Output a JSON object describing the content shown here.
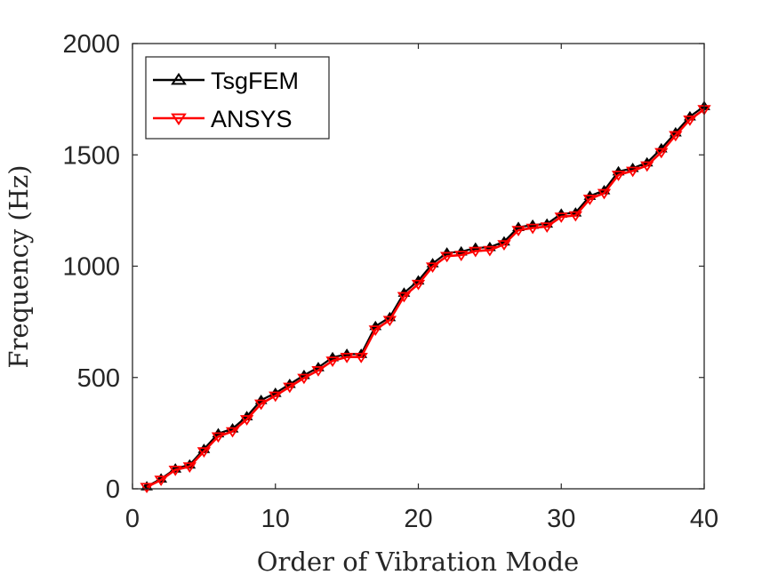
{
  "chart_data": {
    "type": "line",
    "title": "",
    "xlabel": "Order of Vibration Mode",
    "ylabel": "Frequency (Hz)",
    "xlim": [
      0,
      40
    ],
    "ylim": [
      0,
      2000
    ],
    "xticks": [
      0,
      10,
      20,
      30,
      40
    ],
    "yticks": [
      0,
      500,
      1000,
      1500,
      2000
    ],
    "grid": false,
    "legend_position": "top-left",
    "x": [
      1,
      2,
      3,
      4,
      5,
      6,
      7,
      8,
      9,
      10,
      11,
      12,
      13,
      14,
      15,
      16,
      17,
      18,
      19,
      20,
      21,
      22,
      23,
      24,
      25,
      26,
      27,
      28,
      29,
      30,
      31,
      32,
      33,
      34,
      35,
      36,
      37,
      38,
      39,
      40
    ],
    "series": [
      {
        "name": "TsgFEM",
        "color": "#000000",
        "marker": "triangle-up",
        "values": [
          10,
          45,
          90,
          108,
          178,
          248,
          270,
          325,
          398,
          430,
          470,
          510,
          545,
          590,
          605,
          605,
          730,
          770,
          880,
          935,
          1012,
          1060,
          1065,
          1082,
          1085,
          1110,
          1175,
          1185,
          1190,
          1235,
          1240,
          1315,
          1340,
          1425,
          1440,
          1465,
          1528,
          1600,
          1672,
          1718
        ]
      },
      {
        "name": "ANSYS",
        "color": "#ff0000",
        "marker": "triangle-down",
        "values": [
          8,
          40,
          85,
          100,
          168,
          235,
          258,
          312,
          382,
          418,
          458,
          498,
          532,
          575,
          592,
          592,
          715,
          758,
          865,
          920,
          998,
          1045,
          1050,
          1068,
          1072,
          1098,
          1162,
          1172,
          1178,
          1222,
          1228,
          1302,
          1328,
          1410,
          1428,
          1452,
          1512,
          1588,
          1658,
          1705
        ]
      }
    ]
  }
}
